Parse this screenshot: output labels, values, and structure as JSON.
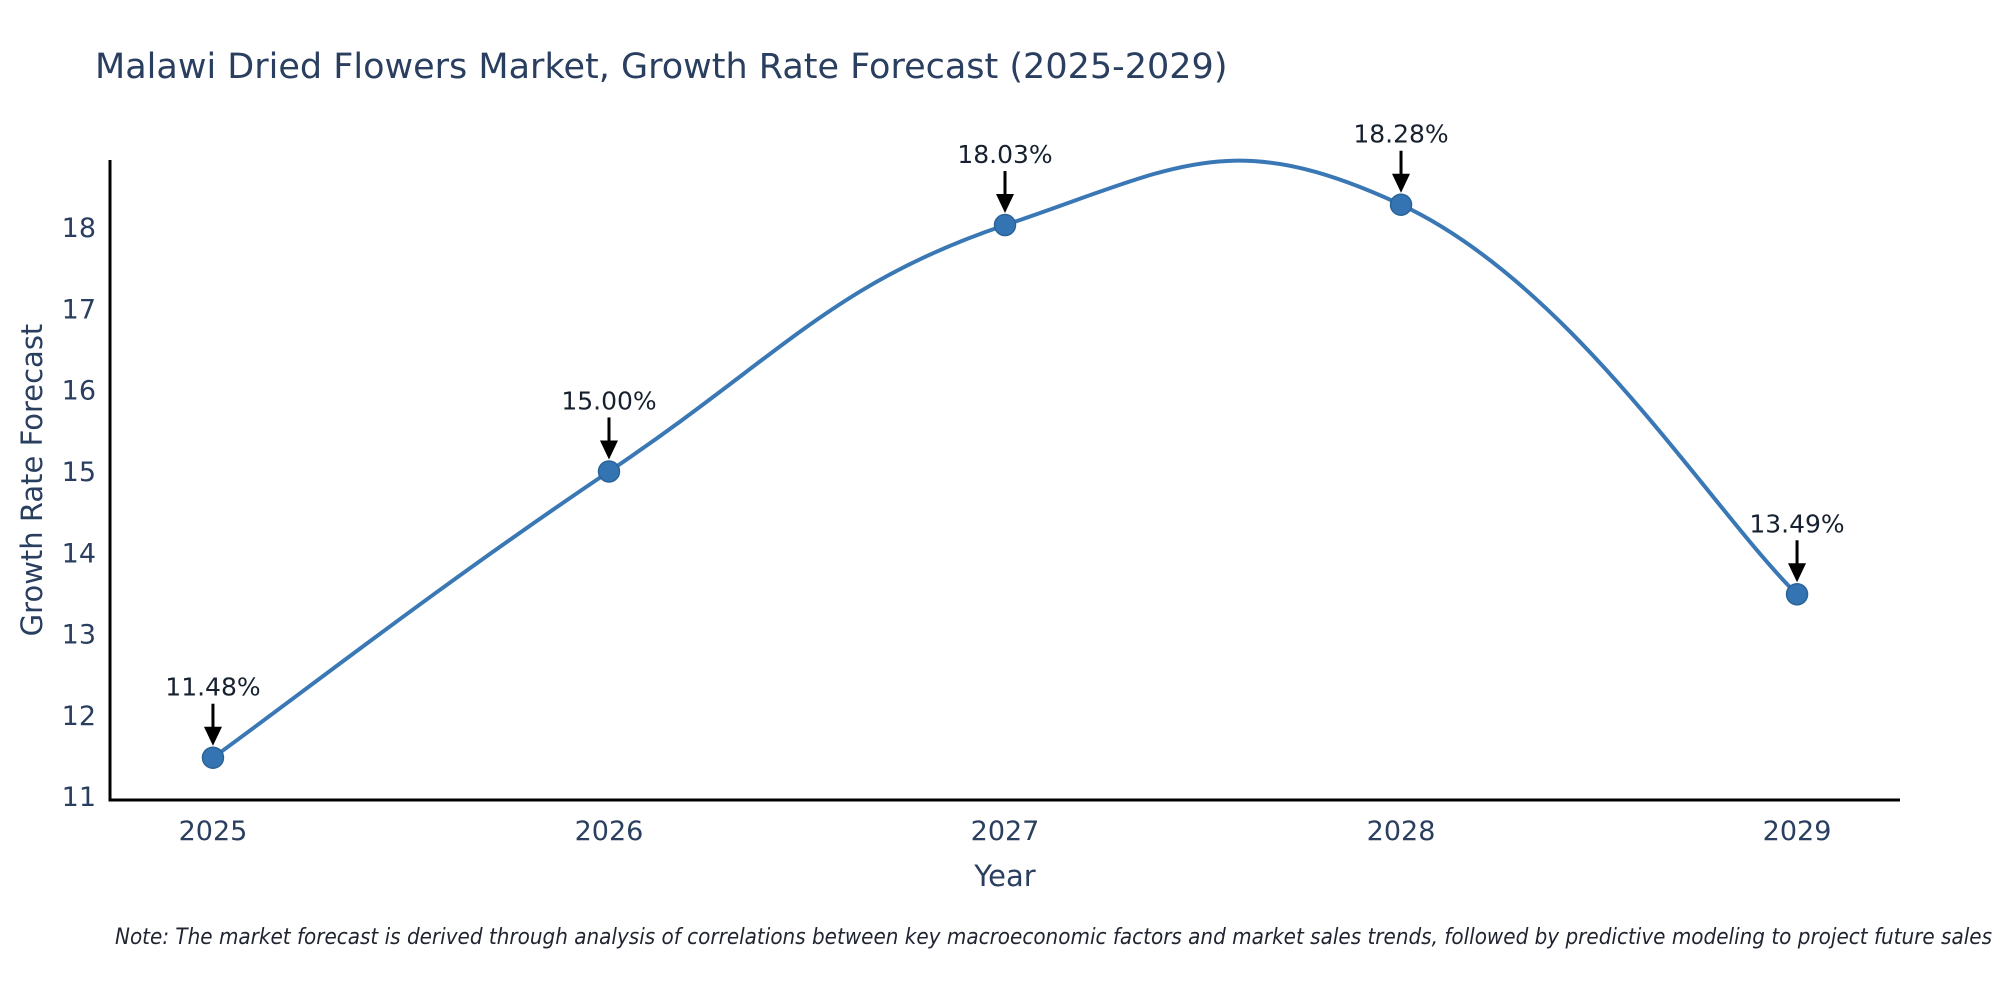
{
  "title": "Malawi Dried Flowers Market, Growth Rate Forecast (2025-2029)",
  "note": "Note: The market forecast is derived through analysis of correlations between key macroeconomic factors and market sales trends, followed by predictive modeling to project future sales",
  "chart_data": {
    "type": "line",
    "line_shape": "spline",
    "x": [
      2025,
      2026,
      2027,
      2028,
      2029
    ],
    "x_tick_labels": [
      "2025",
      "2026",
      "2027",
      "2028",
      "2029"
    ],
    "series": [
      {
        "name": "Growth Rate Forecast",
        "values": [
          11.48,
          15.0,
          18.03,
          18.28,
          13.49
        ],
        "point_labels": [
          "11.48%",
          "15.00%",
          "18.03%",
          "18.28%",
          "13.49%"
        ]
      }
    ],
    "title": "Malawi Dried Flowers Market, Growth Rate Forecast (2025-2029)",
    "xlabel": "Year",
    "ylabel": "Growth Rate Forecast",
    "y_ticks": [
      11,
      12,
      13,
      14,
      15,
      16,
      17,
      18
    ],
    "xlim": [
      2024.74,
      2029.26
    ],
    "ylim": [
      10.96,
      18.83
    ],
    "grid": false,
    "legend": "none",
    "annotations_style": "down-arrow",
    "colors": {
      "line": "#3a78b5",
      "marker": "#3474b3",
      "marker_edge": "#2a6398",
      "arrow": "#000000",
      "annotation_text": "#16202e",
      "axis_line": "#000000",
      "text": "#2a3f5f",
      "note_text": "#1f2430",
      "background": "#ffffff"
    }
  }
}
